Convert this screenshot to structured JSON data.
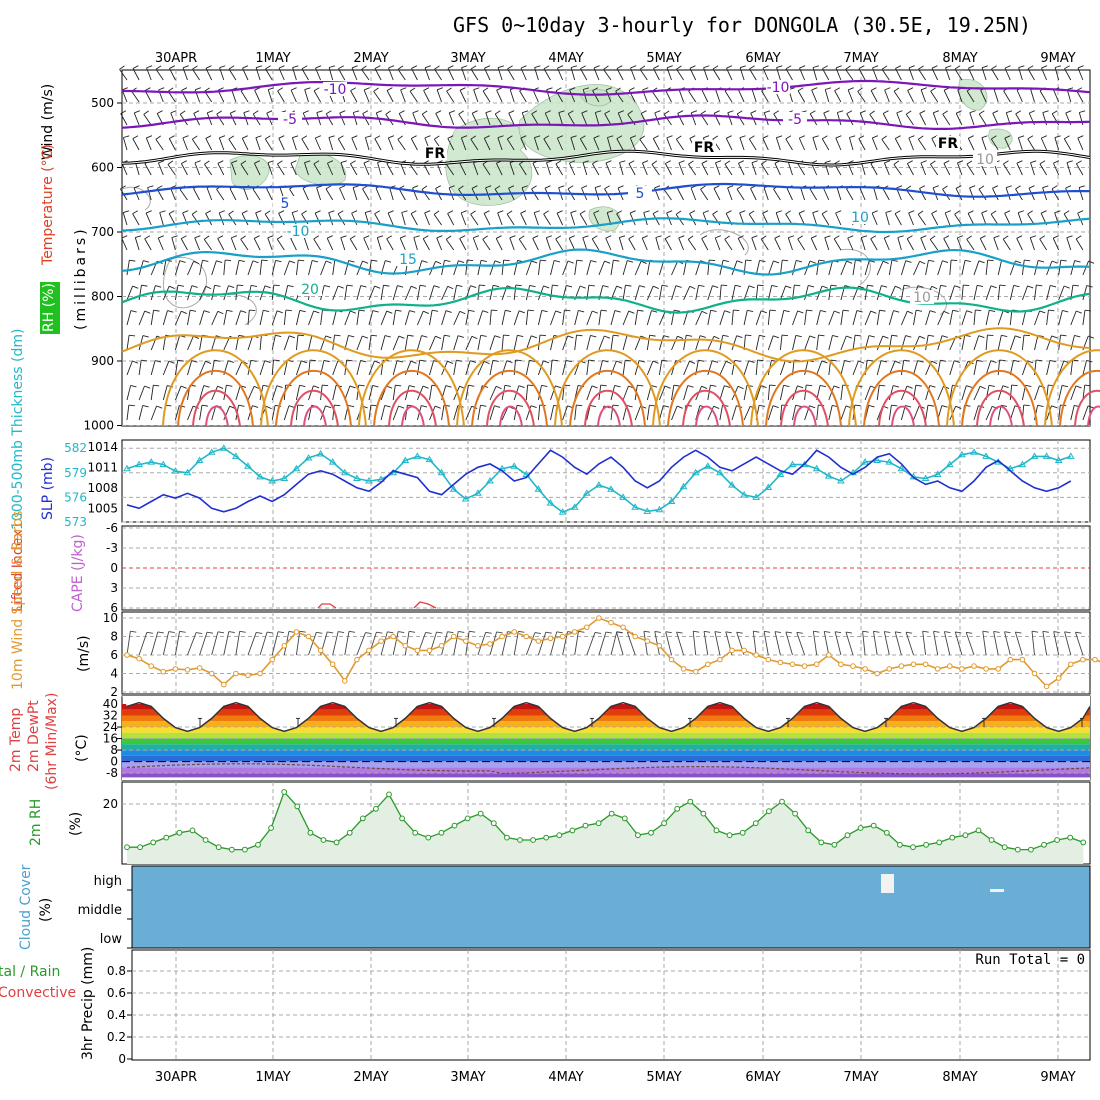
{
  "title": "GFS 0~10day 3-hourly for DONGOLA (30.5E, 19.25N)",
  "dates": [
    "30APR",
    "1MAY",
    "2MAY",
    "3MAY",
    "4MAY",
    "5MAY",
    "6MAY",
    "7MAY",
    "8MAY",
    "9MAY"
  ],
  "colors": {
    "rh_fill": "#c8e6c8",
    "temp_cold": "#7b16b8",
    "temp_fr": "#000000",
    "temp_cool": "#1f4fd0",
    "temp_mild": "#1aa0c8",
    "temp_teal": "#10b08a",
    "temp_warm": "#e09a20",
    "temp_hot": "#e0507a",
    "thickness": "#20b8c8",
    "slp": "#1f2fd0",
    "wind10": "#e09a30",
    "rh2m": "#2a9a2a",
    "cloud": "#6aaed6",
    "precip_axis": "#000000"
  },
  "panels": {
    "upper": {
      "label_wind": "Wind (m/s)",
      "label_temp": "Temperature (°C)",
      "label_rh": "RH (%)",
      "ylabel": "(millibars)",
      "pressure_ticks": [
        500,
        600,
        700,
        800,
        900,
        1000
      ],
      "isotherm_labels": [
        "-10",
        "-10",
        "-5",
        "-5",
        "FR",
        "FR",
        "FR",
        "5",
        "5",
        "-10",
        "10",
        "15",
        "20",
        "10",
        "10"
      ]
    },
    "thickness_slp": {
      "label_thk": "1000-500mb Thickness (dm)",
      "label_slp": "SLP (mb)",
      "thk_ticks": [
        582,
        579,
        576,
        573
      ],
      "slp_ticks": [
        1014,
        1011,
        1008,
        1005
      ]
    },
    "lifted_cape": {
      "label_li": "Lifted Index",
      "label_cape": "CAPE (J/kg)",
      "ticks": [
        "-6",
        "-3",
        "0",
        "3",
        "6"
      ]
    },
    "wind10m": {
      "label": "10m Wind Speed & Barbs",
      "unit": "(m/s)",
      "ticks": [
        10,
        8,
        6,
        4,
        2
      ]
    },
    "temp2m": {
      "label1": "2m Temp",
      "label2": "2m DewPt",
      "label3": "(6hr Min/Max)",
      "unit": "(°C)",
      "ticks": [
        "40",
        "32",
        "24",
        "16",
        "8",
        "0",
        "-8"
      ]
    },
    "rh2m": {
      "label": "2m RH",
      "unit": "(%)",
      "ticks": [
        20
      ]
    },
    "cloud": {
      "label": "Cloud Cover",
      "unit": "(%)",
      "levels": [
        "high",
        "middle",
        "low"
      ]
    },
    "precip": {
      "label1": "tal / Rain",
      "label2": "Convective",
      "ylabel": "3hr Precip (mm)",
      "ticks": [
        "0.8",
        "0.6",
        "0.4",
        "0.2",
        "0"
      ],
      "run_total": "Run Total = 0"
    }
  },
  "chart_data": [
    {
      "type": "line",
      "title": "1000-500mb Thickness (dm) / SLP (mb)",
      "x": [
        "29APR12",
        "29APR15",
        "29APR18",
        "29APR21",
        "30APR00",
        "30APR03",
        "30APR06",
        "30APR09",
        "30APR12",
        "30APR15",
        "30APR18",
        "30APR21",
        "1MAY00",
        "1MAY03",
        "1MAY06",
        "1MAY09",
        "1MAY12",
        "1MAY15",
        "1MAY18",
        "1MAY21",
        "2MAY00",
        "2MAY03",
        "2MAY06",
        "2MAY09",
        "2MAY12",
        "2MAY15",
        "2MAY18",
        "2MAY21",
        "3MAY00",
        "3MAY03",
        "3MAY06",
        "3MAY09",
        "3MAY12",
        "3MAY15",
        "3MAY18",
        "3MAY21",
        "4MAY00",
        "4MAY03",
        "4MAY06",
        "4MAY09",
        "4MAY12",
        "4MAY15",
        "4MAY18",
        "4MAY21",
        "5MAY00",
        "5MAY03",
        "5MAY06",
        "5MAY09",
        "5MAY12",
        "5MAY15",
        "5MAY18",
        "5MAY21",
        "6MAY00",
        "6MAY03",
        "6MAY06",
        "6MAY09",
        "6MAY12",
        "6MAY15",
        "6MAY18",
        "6MAY21",
        "7MAY00",
        "7MAY03",
        "7MAY06",
        "7MAY09",
        "7MAY12",
        "7MAY15",
        "7MAY18",
        "7MAY21",
        "8MAY00",
        "8MAY03",
        "8MAY06",
        "8MAY09",
        "8MAY12",
        "8MAY15",
        "8MAY18",
        "8MAY21",
        "9MAY00",
        "9MAY03",
        "9MAY06"
      ],
      "series": [
        {
          "name": "Thickness (dm)",
          "axis": "left",
          "values": [
            579.5,
            580.0,
            580.3,
            580.0,
            579.2,
            579.0,
            580.5,
            581.5,
            582.0,
            581.0,
            579.8,
            578.5,
            578.0,
            578.3,
            579.5,
            580.8,
            581.3,
            580.3,
            579.0,
            578.3,
            578.0,
            578.2,
            579.0,
            580.5,
            581.0,
            580.6,
            579.0,
            577.0,
            575.8,
            576.5,
            578.0,
            579.5,
            579.8,
            578.8,
            577.0,
            575.3,
            574.2,
            574.8,
            576.5,
            577.5,
            577.0,
            576.0,
            574.8,
            574.3,
            574.5,
            575.5,
            577.3,
            579.0,
            579.8,
            579.0,
            577.5,
            576.3,
            576.0,
            577.2,
            578.8,
            580.0,
            580.0,
            579.5,
            578.6,
            578.0,
            579.0,
            580.3,
            580.5,
            580.3,
            579.5,
            578.5,
            578.3,
            578.8,
            580.0,
            581.2,
            581.5,
            581.0,
            580.3,
            579.5,
            580.0,
            581.0,
            581.0,
            580.5,
            581.0
          ]
        },
        {
          "name": "SLP (mb)",
          "axis": "right",
          "values": [
            1005.5,
            1005.0,
            1006.0,
            1007.0,
            1006.5,
            1007.2,
            1006.5,
            1005.0,
            1004.5,
            1005.0,
            1006.0,
            1006.8,
            1006.0,
            1007.0,
            1008.5,
            1010.0,
            1010.5,
            1010.0,
            1009.0,
            1008.0,
            1007.5,
            1008.8,
            1010.5,
            1010.0,
            1009.5,
            1007.5,
            1007.0,
            1008.5,
            1010.0,
            1011.0,
            1011.5,
            1010.5,
            1009.0,
            1009.5,
            1011.5,
            1013.5,
            1012.5,
            1011.0,
            1010.0,
            1011.5,
            1012.5,
            1011.0,
            1009.0,
            1008.0,
            1009.0,
            1011.0,
            1012.5,
            1013.5,
            1012.5,
            1011.0,
            1010.5,
            1011.5,
            1012.5,
            1011.5,
            1010.5,
            1010.0,
            1011.5,
            1013.5,
            1012.5,
            1011.0,
            1010.0,
            1011.0,
            1012.5,
            1013.0,
            1011.5,
            1009.5,
            1008.5,
            1009.0,
            1008.0,
            1007.5,
            1009.0,
            1011.0,
            1012.0,
            1010.5,
            1009.0,
            1008.0,
            1007.5,
            1008.0,
            1009.0
          ]
        }
      ],
      "ylim_left": [
        573,
        583
      ],
      "ylim_right": [
        1003,
        1015
      ]
    },
    {
      "type": "line",
      "title": "10m Wind Speed & Barbs",
      "ylabel": "(m/s)",
      "ylim": [
        2,
        10
      ],
      "series": [
        {
          "name": "10m Wind Speed",
          "values": [
            6.0,
            5.6,
            4.8,
            4.2,
            4.5,
            4.4,
            4.6,
            4.0,
            2.8,
            4.0,
            3.8,
            4.0,
            5.5,
            7.0,
            8.5,
            8.0,
            6.5,
            5.0,
            3.2,
            5.5,
            6.5,
            7.5,
            8.0,
            7.0,
            6.5,
            6.5,
            7.0,
            8.0,
            7.5,
            7.0,
            7.2,
            8.0,
            8.5,
            8.0,
            7.5,
            7.8,
            8.0,
            8.5,
            9.0,
            10.0,
            9.5,
            9.0,
            8.0,
            7.5,
            7.0,
            5.5,
            4.5,
            4.2,
            5.0,
            5.5,
            6.5,
            6.5,
            6.0,
            5.5,
            5.2,
            5.0,
            4.8,
            5.0,
            6.0,
            5.0,
            4.8,
            4.5,
            4.0,
            4.5,
            4.8,
            5.0,
            5.0,
            4.5,
            4.8,
            4.5,
            4.8,
            4.5,
            4.5,
            5.5,
            5.5,
            4.0,
            2.6,
            3.5,
            5.0,
            5.5,
            5.5,
            5.0,
            6.0,
            7.0
          ]
        }
      ]
    },
    {
      "type": "line",
      "title": "2m RH",
      "ylabel": "(%)",
      "series": [
        {
          "name": "2m RH",
          "values": [
            2,
            2,
            4,
            6,
            8,
            9,
            5,
            2,
            1,
            1,
            3,
            10,
            25,
            19,
            8,
            5,
            4,
            8,
            14,
            18,
            24,
            14,
            8,
            6,
            8,
            11,
            14,
            16,
            12,
            6,
            5,
            5,
            6,
            7,
            9,
            11,
            12,
            16,
            14,
            7,
            8,
            12,
            18,
            21,
            16,
            9,
            7,
            8,
            12,
            17,
            21,
            16,
            9,
            4,
            3,
            7,
            10,
            11,
            8,
            3,
            2,
            3,
            4,
            6,
            7,
            9,
            5,
            2,
            1,
            1,
            3,
            5,
            6,
            4
          ]
        }
      ]
    },
    {
      "type": "line",
      "title": "3hr Precip (mm)",
      "ylim": [
        0,
        1
      ],
      "series": [
        {
          "name": "Total / Rain",
          "values": [
            0
          ]
        }
      ]
    }
  ]
}
